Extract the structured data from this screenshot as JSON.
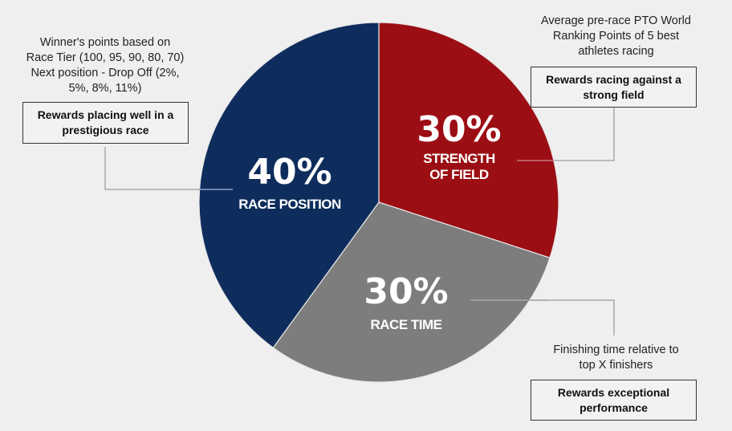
{
  "chart_data": {
    "type": "pie",
    "title": "",
    "categories": [
      "Strength of Field",
      "Race Time",
      "Race Position"
    ],
    "values": [
      30,
      30,
      40
    ],
    "colors": [
      "#9b0e14",
      "#7d7d7d",
      "#0f2d5c"
    ],
    "labels": [
      {
        "pct": "30%",
        "line1": "STRENGTH",
        "line2": "OF FIELD"
      },
      {
        "pct": "30%",
        "line1": "RACE TIME",
        "line2": ""
      },
      {
        "pct": "40%",
        "line1": "RACE POSITION",
        "line2": ""
      }
    ]
  },
  "annotations": {
    "race_position": {
      "description": [
        "Winner's points based on",
        "Race Tier (100, 95, 90, 80, 70)",
        "Next position - Drop Off (2%,",
        "5%, 8%, 11%)"
      ],
      "box": [
        "Rewards placing well in a",
        "prestigious race"
      ]
    },
    "strength_of_field": {
      "description": [
        "Average pre-race PTO World",
        "Ranking Points of 5 best",
        "athletes racing"
      ],
      "box": [
        "Rewards racing against a",
        "strong field"
      ]
    },
    "race_time": {
      "description": [
        "Finishing time relative to",
        "top X finishers"
      ],
      "box": [
        "Rewards exceptional",
        "performance"
      ]
    }
  }
}
